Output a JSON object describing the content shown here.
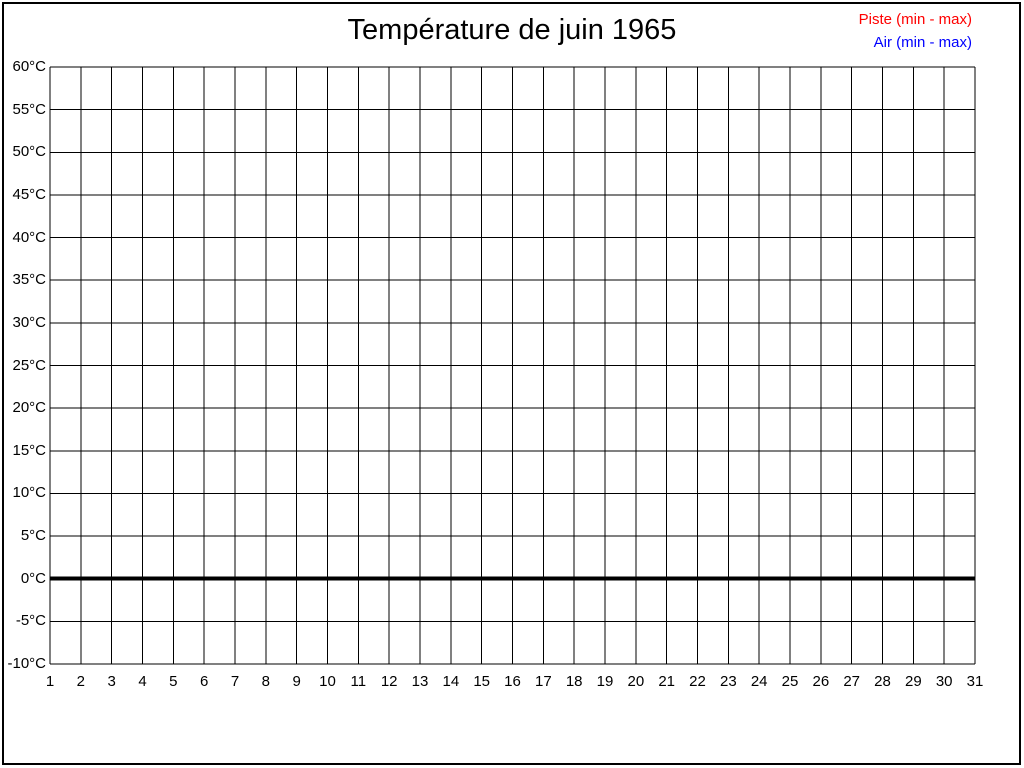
{
  "page": {
    "background": "#ffffff",
    "border_color": "#000000"
  },
  "chart_data": {
    "type": "line",
    "title": "Température de juin 1965",
    "xlabel": "",
    "ylabel": "",
    "x_labels": [
      "1",
      "2",
      "3",
      "4",
      "5",
      "6",
      "7",
      "8",
      "9",
      "10",
      "11",
      "12",
      "13",
      "14",
      "15",
      "16",
      "17",
      "18",
      "19",
      "20",
      "21",
      "22",
      "23",
      "24",
      "25",
      "26",
      "27",
      "28",
      "29",
      "30",
      "31"
    ],
    "xlim": [
      1,
      31
    ],
    "y_tick_labels": [
      "60°C",
      "55°C",
      "50°C",
      "45°C",
      "40°C",
      "35°C",
      "30°C",
      "25°C",
      "20°C",
      "15°C",
      "10°C",
      "5°C",
      "0°C",
      "-5°C",
      "-10°C"
    ],
    "ylim": [
      -10,
      60
    ],
    "ytick_step": 5,
    "grid": true,
    "gridline_color": "#000000",
    "zero_line": {
      "value": 0,
      "thickness": 4,
      "color": "#000000"
    },
    "legend_position": "top-right",
    "series": [
      {
        "name": "Piste (min - max)",
        "color": "#ff0000",
        "values": []
      },
      {
        "name": "Air (min - max)",
        "color": "#0000ff",
        "values": []
      }
    ]
  }
}
